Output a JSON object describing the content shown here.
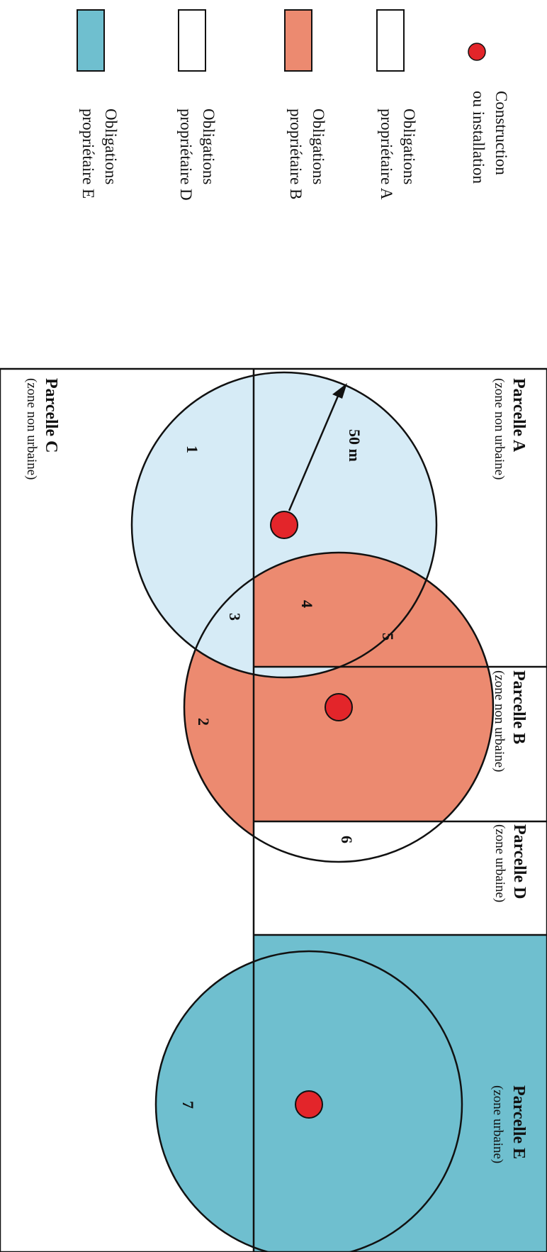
{
  "legend": {
    "items": [
      {
        "line1": "Construction",
        "line2": "ou installation",
        "kind": "dot",
        "color": "#e3252a"
      },
      {
        "line1": "Obligations",
        "line2": "propriétaire A",
        "kind": "swatch",
        "color": "#ffffff"
      },
      {
        "line1": "Obligations",
        "line2": "propriétaire B",
        "kind": "swatch",
        "color": "#ec8a70"
      },
      {
        "line1": "Obligations",
        "line2": "propriétaire D",
        "kind": "swatch",
        "color": "#ffffff"
      },
      {
        "line1": "Obligations",
        "line2": "propriétaire E",
        "kind": "swatch",
        "color": "#6fbfcf"
      }
    ]
  },
  "parcels": {
    "A": {
      "name": "Parcelle A",
      "zone": "(zone non urbaine)"
    },
    "B": {
      "name": "Parcelle B",
      "zone": "(zone non urbaine)"
    },
    "C": {
      "name": "Parcelle C",
      "zone": "(zone non urbaine)"
    },
    "D": {
      "name": "Parcelle D",
      "zone": "(zone urbaine)"
    },
    "E": {
      "name": "Parcelle E",
      "zone": "(zone urbaine)"
    }
  },
  "radius_label": "50 m",
  "zones": [
    "1",
    "2",
    "3",
    "4",
    "5",
    "6",
    "7"
  ],
  "colors": {
    "light_blue": "#d6ebf6",
    "salmon": "#ec8a70",
    "teal": "#6fbfcf",
    "red": "#e3252a",
    "outline": "#111111"
  }
}
